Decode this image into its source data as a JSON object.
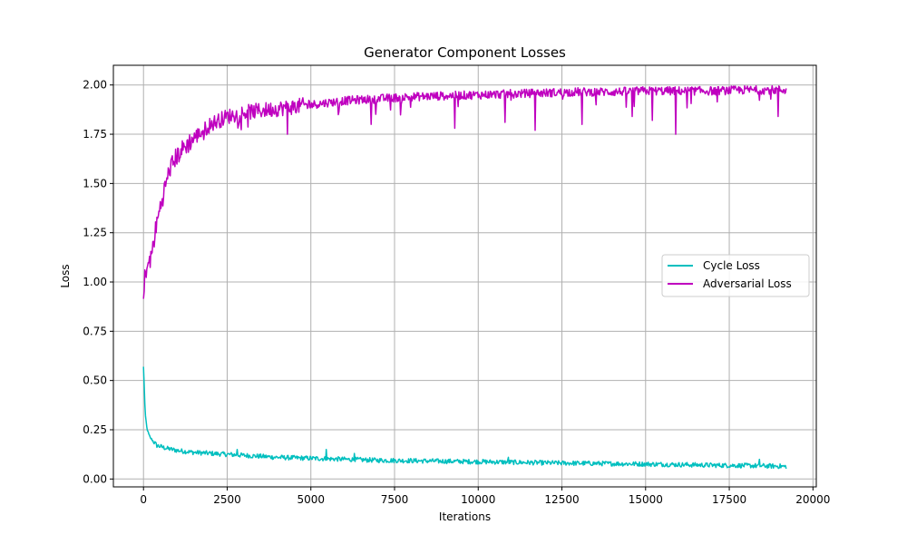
{
  "chart_data": {
    "type": "line",
    "title": "Generator Component Losses",
    "xlabel": "Iterations",
    "ylabel": "Loss",
    "xlim": [
      -900,
      20100
    ],
    "ylim": [
      -0.04,
      2.1
    ],
    "xticks": [
      0,
      2500,
      5000,
      7500,
      10000,
      12500,
      15000,
      17500,
      20000
    ],
    "yticks": [
      0.0,
      0.25,
      0.5,
      0.75,
      1.0,
      1.25,
      1.5,
      1.75,
      2.0
    ],
    "xtick_labels": [
      "0",
      "2500",
      "5000",
      "7500",
      "10000",
      "12500",
      "15000",
      "17500",
      "20000"
    ],
    "ytick_labels": [
      "0.00",
      "0.25",
      "0.50",
      "0.75",
      "1.00",
      "1.25",
      "1.50",
      "1.75",
      "2.00"
    ],
    "grid": true,
    "legend_position": "center-right",
    "series": [
      {
        "name": "Cycle Loss",
        "color": "#00bfbf",
        "x": [
          0,
          50,
          100,
          150,
          200,
          300,
          400,
          500,
          700,
          1000,
          1500,
          2000,
          2500,
          3000,
          3500,
          4000,
          5000,
          6000,
          7000,
          8000,
          9000,
          10000,
          11000,
          12000,
          13000,
          14000,
          15000,
          16000,
          17000,
          18000,
          19000,
          19200
        ],
        "y": [
          0.57,
          0.33,
          0.26,
          0.23,
          0.21,
          0.19,
          0.17,
          0.165,
          0.155,
          0.145,
          0.135,
          0.13,
          0.125,
          0.12,
          0.115,
          0.11,
          0.105,
          0.1,
          0.095,
          0.093,
          0.09,
          0.088,
          0.085,
          0.082,
          0.08,
          0.078,
          0.076,
          0.073,
          0.07,
          0.068,
          0.065,
          0.063
        ],
        "spikes": [
          [
            2800,
            0.15
          ],
          [
            5450,
            0.15
          ],
          [
            6300,
            0.13
          ],
          [
            10900,
            0.11
          ],
          [
            18400,
            0.1
          ]
        ]
      },
      {
        "name": "Adversarial Loss",
        "color": "#bf00bf",
        "x": [
          0,
          50,
          100,
          200,
          300,
          400,
          500,
          600,
          700,
          800,
          1000,
          1200,
          1500,
          1800,
          2000,
          2500,
          3000,
          3500,
          4000,
          5000,
          6000,
          7000,
          8000,
          9000,
          10000,
          11000,
          12000,
          13000,
          14000,
          15000,
          16000,
          17000,
          18000,
          19000,
          19200
        ],
        "y": [
          0.9,
          1.05,
          1.08,
          1.1,
          1.2,
          1.3,
          1.38,
          1.45,
          1.52,
          1.58,
          1.64,
          1.68,
          1.73,
          1.77,
          1.8,
          1.84,
          1.86,
          1.87,
          1.88,
          1.9,
          1.92,
          1.93,
          1.94,
          1.945,
          1.95,
          1.955,
          1.96,
          1.965,
          1.965,
          1.97,
          1.97,
          1.97,
          1.975,
          1.975,
          1.975
        ],
        "dips": [
          [
            4300,
            1.75
          ],
          [
            6800,
            1.8
          ],
          [
            9300,
            1.78
          ],
          [
            10800,
            1.81
          ],
          [
            11700,
            1.77
          ],
          [
            13100,
            1.8
          ],
          [
            14600,
            1.84
          ],
          [
            15200,
            1.82
          ],
          [
            15900,
            1.75
          ],
          [
            18950,
            1.84
          ]
        ]
      }
    ]
  }
}
